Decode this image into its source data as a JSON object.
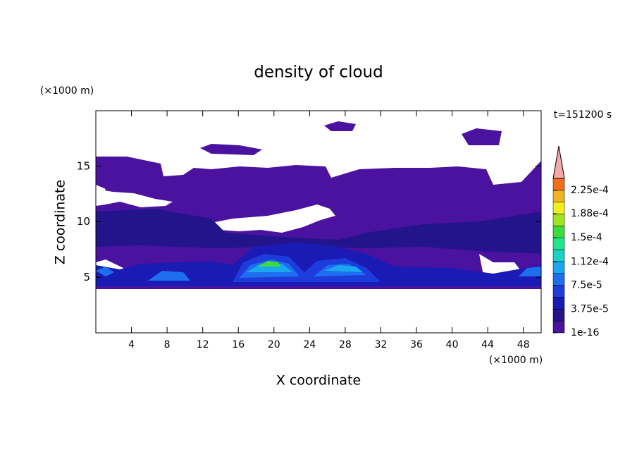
{
  "chart_data": {
    "type": "contour",
    "title": "density of cloud",
    "x_label": "X coordinate",
    "y_label": "Z coordinate",
    "x_unit": "(×1000 m)",
    "y_unit": "(×1000 m)",
    "annotation": "t=151200 s",
    "xlim": [
      0,
      50
    ],
    "xticks": [
      4,
      8,
      12,
      16,
      20,
      24,
      28,
      32,
      36,
      40,
      44,
      48
    ],
    "ylim": [
      0,
      20
    ],
    "yticks": [
      5,
      10,
      15
    ],
    "colorbar": {
      "lim": [
        1e-16,
        0.00024375
      ],
      "colors": [
        "#4b12a0",
        "#23148c",
        "#1a1ab4",
        "#1e3cdc",
        "#1e6ef0",
        "#1aa8f0",
        "#1ad2c8",
        "#1ee68c",
        "#3cdc3c",
        "#a0e61e",
        "#f0f01e",
        "#f0b41e",
        "#f06e1e"
      ],
      "extend_color": "#f4a8a8",
      "ticks": [
        {
          "value": 1e-16,
          "label": "1e-16"
        },
        {
          "value": 3.75e-05,
          "label": "3.75e-5"
        },
        {
          "value": 7.5e-05,
          "label": "7.5e-5"
        },
        {
          "value": 0.000112,
          "label": "1.12e-4"
        },
        {
          "value": 0.00015,
          "label": "1.5e-4"
        },
        {
          "value": 0.000188,
          "label": "1.88e-4"
        },
        {
          "value": 0.000225,
          "label": "2.25e-4"
        }
      ]
    }
  }
}
